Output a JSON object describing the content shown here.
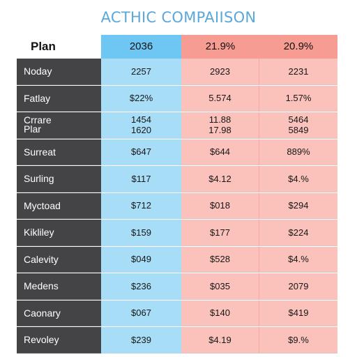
{
  "title": "ACTHIC COMPAIISON",
  "header": {
    "plan_label": "Plan",
    "columns": [
      "2036",
      "21.9%",
      "20.9%"
    ]
  },
  "rows": [
    {
      "label": "Noday",
      "values": [
        "2257",
        "2923",
        "2231"
      ]
    },
    {
      "label": "Fatlay",
      "values": [
        "$22%",
        "5.574",
        "1.57%"
      ]
    },
    {
      "label_lines": [
        "Crrare",
        "Plar"
      ],
      "values_lines": [
        [
          "1454",
          "1620"
        ],
        [
          "11.88",
          "17.98"
        ],
        [
          "5464",
          "5849"
        ]
      ]
    },
    {
      "label": "Surreat",
      "values": [
        "$647",
        "$644",
        "889%"
      ]
    },
    {
      "label": "Surling",
      "values": [
        "$117",
        "$4.12",
        "$4.%"
      ]
    },
    {
      "label": "Myctoad",
      "values": [
        "$712",
        "$018",
        "$294"
      ]
    },
    {
      "label": "Kikliley",
      "values": [
        "$159",
        "$177",
        "$224"
      ]
    },
    {
      "label": "Calevity",
      "values": [
        "$049",
        "$528",
        "$4.%"
      ]
    },
    {
      "label": "Medens",
      "values": [
        "$236",
        "$035",
        "2079"
      ]
    },
    {
      "label": "Caonary",
      "values": [
        "$067",
        "$140",
        "$419"
      ]
    },
    {
      "label": "Revoley",
      "values": [
        "$239",
        "$4.19",
        "$9.%"
      ]
    }
  ],
  "colors": {
    "title": "#5aa8da",
    "label_column": "#444446",
    "blue_header": "#6ec6f3",
    "blue_cells": "#a8ddf8",
    "red_header": "#f79c92",
    "red_cells": "#fbc2bb"
  }
}
